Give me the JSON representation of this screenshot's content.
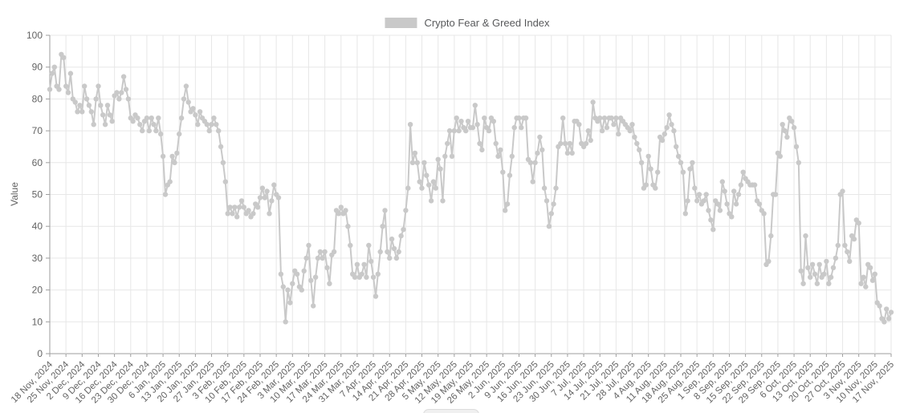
{
  "chart_data": {
    "type": "line",
    "legend": "Crypto Fear & Greed Index",
    "ylabel": "Value",
    "ylim": [
      0,
      100
    ],
    "y_ticks": [
      0,
      10,
      20,
      30,
      40,
      50,
      60,
      70,
      80,
      90,
      100
    ],
    "x_tick_labels": [
      "18 Nov, 2024",
      "25 Nov, 2024",
      "2 Dec, 2024",
      "9 Dec, 2024",
      "16 Dec, 2024",
      "23 Dec, 2024",
      "30 Dec, 2024",
      "6 Jan, 2025",
      "13 Jan, 2025",
      "20 Jan, 2025",
      "27 Jan, 2025",
      "3 Feb, 2025",
      "10 Feb, 2025",
      "17 Feb, 2025",
      "24 Feb, 2025",
      "3 Mar, 2025",
      "10 Mar, 2025",
      "17 Mar, 2025",
      "24 Mar, 2025",
      "31 Mar, 2025",
      "7 Apr, 2025",
      "14 Apr, 2025",
      "21 Apr, 2025",
      "28 Apr, 2025",
      "5 May, 2025",
      "12 May, 2025",
      "19 May, 2025",
      "26 May, 2025",
      "2 Jun, 2025",
      "9 Jun, 2025",
      "16 Jun, 2025",
      "23 Jun, 2025",
      "30 Jun, 2025",
      "7 Jul, 2025",
      "14 Jul, 2025",
      "21 Jul, 2025",
      "28 Jul, 2025",
      "4 Aug, 2025",
      "11 Aug, 2025",
      "18 Aug, 2025",
      "25 Aug, 2025",
      "1 Sep, 2025",
      "8 Sep, 2025",
      "15 Sep, 2025",
      "22 Sep, 2025",
      "29 Sep, 2025",
      "6 Oct, 2025",
      "13 Oct, 2025",
      "20 Oct, 2025",
      "27 Oct, 2025",
      "3 Nov, 2025",
      "10 Nov, 2025",
      "17 Nov, 2025"
    ],
    "point_interval": "daily",
    "grid": true,
    "markers": true,
    "legend_position": "top-center",
    "colors": {
      "series": "#c9c9c9",
      "grid": "#e7e7e7",
      "axis": "#9e9e9e",
      "text": "#636363"
    },
    "series": [
      {
        "name": "Crypto Fear & Greed Index",
        "values": [
          83,
          88,
          90,
          84,
          83,
          94,
          93,
          84,
          82,
          88,
          80,
          79,
          76,
          78,
          76,
          84,
          80,
          78,
          76,
          72,
          80,
          84,
          78,
          75,
          72,
          78,
          75,
          73,
          81,
          82,
          80,
          82,
          87,
          83,
          80,
          74,
          73,
          75,
          74,
          72,
          70,
          73,
          74,
          70,
          74,
          72,
          70,
          74,
          69,
          62,
          50,
          53,
          54,
          62,
          60,
          63,
          69,
          74,
          80,
          84,
          79,
          76,
          77,
          75,
          72,
          76,
          74,
          73,
          72,
          70,
          72,
          74,
          72,
          70,
          65,
          60,
          54,
          44,
          46,
          44,
          46,
          43,
          46,
          48,
          46,
          44,
          45,
          43,
          44,
          47,
          46,
          49,
          52,
          49,
          51,
          44,
          48,
          53,
          50,
          49,
          25,
          21,
          10,
          20,
          16,
          22,
          26,
          25,
          21,
          20,
          26,
          30,
          34,
          23,
          15,
          24,
          30,
          32,
          30,
          32,
          27,
          22,
          31,
          32,
          45,
          44,
          46,
          44,
          45,
          40,
          34,
          25,
          24,
          28,
          24,
          25,
          28,
          24,
          34,
          29,
          24,
          18,
          25,
          32,
          40,
          45,
          32,
          30,
          36,
          33,
          30,
          32,
          37,
          39,
          45,
          52,
          72,
          60,
          63,
          60,
          54,
          52,
          60,
          56,
          53,
          48,
          54,
          52,
          61,
          58,
          48,
          62,
          66,
          70,
          62,
          70,
          74,
          70,
          73,
          71,
          70,
          73,
          71,
          71,
          78,
          72,
          66,
          64,
          74,
          71,
          70,
          74,
          73,
          66,
          62,
          64,
          57,
          45,
          47,
          56,
          62,
          71,
          74,
          74,
          71,
          74,
          74,
          61,
          60,
          54,
          60,
          63,
          68,
          64,
          52,
          48,
          40,
          44,
          47,
          52,
          65,
          66,
          74,
          66,
          63,
          66,
          63,
          73,
          73,
          72,
          66,
          65,
          66,
          70,
          67,
          79,
          74,
          73,
          74,
          70,
          74,
          71,
          74,
          74,
          72,
          74,
          69,
          74,
          73,
          72,
          71,
          70,
          72,
          68,
          66,
          64,
          60,
          52,
          53,
          62,
          58,
          53,
          52,
          57,
          68,
          67,
          69,
          71,
          75,
          72,
          70,
          65,
          62,
          60,
          57,
          44,
          48,
          58,
          60,
          52,
          48,
          50,
          47,
          48,
          50,
          45,
          42,
          39,
          48,
          47,
          45,
          54,
          51,
          47,
          44,
          43,
          51,
          47,
          50,
          53,
          57,
          55,
          54,
          53,
          53,
          53,
          48,
          47,
          45,
          44,
          28,
          29,
          37,
          50,
          50,
          63,
          62,
          72,
          70,
          68,
          74,
          73,
          71,
          65,
          60,
          26,
          22,
          37,
          27,
          24,
          28,
          25,
          22,
          28,
          24,
          25,
          29,
          22,
          24,
          27,
          30,
          34,
          50,
          51,
          34,
          32,
          29,
          37,
          36,
          42,
          41,
          22,
          24,
          21,
          28,
          27,
          23,
          25,
          16,
          15,
          11,
          10,
          14,
          11,
          13
        ]
      }
    ]
  }
}
